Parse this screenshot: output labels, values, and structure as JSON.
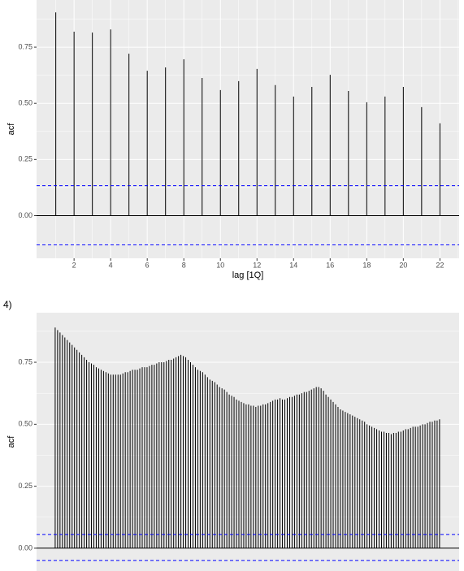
{
  "section_label": "4)",
  "chart_data": [
    {
      "type": "acf",
      "ylabel": "acf",
      "xlabel": "lag [1Q]",
      "x": [
        1,
        2,
        3,
        4,
        5,
        6,
        7,
        8,
        9,
        10,
        11,
        12,
        13,
        14,
        15,
        16,
        17,
        18,
        19,
        20,
        21,
        22
      ],
      "values": [
        0.905,
        0.819,
        0.815,
        0.829,
        0.721,
        0.645,
        0.66,
        0.696,
        0.613,
        0.559,
        0.599,
        0.653,
        0.581,
        0.53,
        0.573,
        0.627,
        0.555,
        0.505,
        0.53,
        0.573,
        0.483,
        0.411
      ],
      "color": "#000000",
      "ci_color": "#0000ff",
      "ci_lines": [
        0.133,
        -0.13
      ],
      "xlim": [
        -0.05,
        23.05
      ],
      "xticks": [
        2,
        4,
        6,
        8,
        10,
        12,
        14,
        16,
        18,
        20,
        22
      ],
      "ylim": [
        -0.19,
        0.96
      ],
      "yticks": [
        {
          "value": 0,
          "label": "0.00"
        },
        {
          "value": 0.25,
          "label": "0.25"
        },
        {
          "value": 0.5,
          "label": "0.50"
        },
        {
          "value": 0.75,
          "label": "0.75"
        }
      ],
      "grid": true
    },
    {
      "type": "acf",
      "ylabel": "acf",
      "x": [
        1,
        2,
        3,
        4,
        5,
        6,
        7,
        8,
        9,
        10,
        11,
        12,
        13,
        14,
        15,
        16,
        17,
        18,
        19,
        20,
        21,
        22,
        23,
        24,
        25,
        26,
        27,
        28,
        29,
        30,
        31,
        32,
        33,
        34,
        35,
        36,
        37,
        38,
        39,
        40,
        41,
        42,
        43,
        44,
        45,
        46,
        47,
        48,
        49,
        50,
        51,
        52,
        53,
        54,
        55,
        56,
        57,
        58,
        59,
        60,
        61,
        62,
        63,
        64,
        65,
        66,
        67,
        68,
        69,
        70,
        71,
        72,
        73,
        74,
        75,
        76,
        77,
        78,
        79,
        80,
        81,
        82,
        83,
        84,
        85,
        86,
        87,
        88,
        89,
        90,
        91,
        92,
        93,
        94,
        95,
        96,
        97,
        98,
        99,
        100,
        101,
        102,
        103,
        104,
        105,
        106,
        107,
        108,
        109,
        110,
        111,
        112,
        113,
        114,
        115,
        116,
        117,
        118,
        119,
        120,
        121,
        122,
        123,
        124,
        125,
        126,
        127,
        128,
        129,
        130,
        131,
        132,
        133,
        134,
        135,
        136,
        137,
        138,
        139,
        140,
        141,
        142,
        143,
        144,
        145,
        146,
        147,
        148,
        149,
        150,
        151,
        152,
        153,
        154,
        155,
        156,
        157,
        158,
        159,
        160
      ],
      "values": [
        0.89,
        0.88,
        0.87,
        0.86,
        0.85,
        0.84,
        0.83,
        0.82,
        0.81,
        0.8,
        0.79,
        0.78,
        0.77,
        0.76,
        0.75,
        0.745,
        0.74,
        0.73,
        0.725,
        0.72,
        0.715,
        0.71,
        0.705,
        0.7,
        0.7,
        0.7,
        0.7,
        0.7,
        0.705,
        0.71,
        0.71,
        0.715,
        0.72,
        0.72,
        0.72,
        0.725,
        0.73,
        0.73,
        0.73,
        0.735,
        0.74,
        0.74,
        0.745,
        0.75,
        0.75,
        0.75,
        0.755,
        0.76,
        0.76,
        0.765,
        0.77,
        0.775,
        0.78,
        0.775,
        0.77,
        0.76,
        0.75,
        0.74,
        0.73,
        0.72,
        0.715,
        0.71,
        0.7,
        0.69,
        0.68,
        0.675,
        0.67,
        0.66,
        0.65,
        0.645,
        0.64,
        0.63,
        0.62,
        0.615,
        0.61,
        0.6,
        0.595,
        0.59,
        0.585,
        0.58,
        0.58,
        0.575,
        0.575,
        0.57,
        0.575,
        0.575,
        0.58,
        0.58,
        0.585,
        0.59,
        0.595,
        0.6,
        0.6,
        0.605,
        0.6,
        0.6,
        0.605,
        0.61,
        0.61,
        0.615,
        0.62,
        0.62,
        0.625,
        0.63,
        0.63,
        0.635,
        0.64,
        0.645,
        0.65,
        0.65,
        0.645,
        0.635,
        0.62,
        0.61,
        0.6,
        0.59,
        0.58,
        0.57,
        0.56,
        0.555,
        0.55,
        0.545,
        0.54,
        0.535,
        0.53,
        0.525,
        0.52,
        0.515,
        0.51,
        0.5,
        0.495,
        0.49,
        0.485,
        0.48,
        0.475,
        0.47,
        0.47,
        0.465,
        0.465,
        0.46,
        0.465,
        0.465,
        0.47,
        0.47,
        0.475,
        0.48,
        0.48,
        0.485,
        0.49,
        0.49,
        0.49,
        0.495,
        0.5,
        0.5,
        0.505,
        0.51,
        0.51,
        0.515,
        0.515,
        0.52
      ],
      "color": "#000000",
      "ci_color": "#0000ff",
      "ci_lines": [
        0.055,
        -0.05
      ],
      "xlim": [
        -6.7,
        168.1
      ],
      "ylim": [
        -0.092,
        0.95
      ],
      "yticks": [
        {
          "value": 0,
          "label": "0.00"
        },
        {
          "value": 0.25,
          "label": "0.25"
        },
        {
          "value": 0.5,
          "label": "0.50"
        },
        {
          "value": 0.75,
          "label": "0.75"
        }
      ],
      "grid": true
    }
  ]
}
